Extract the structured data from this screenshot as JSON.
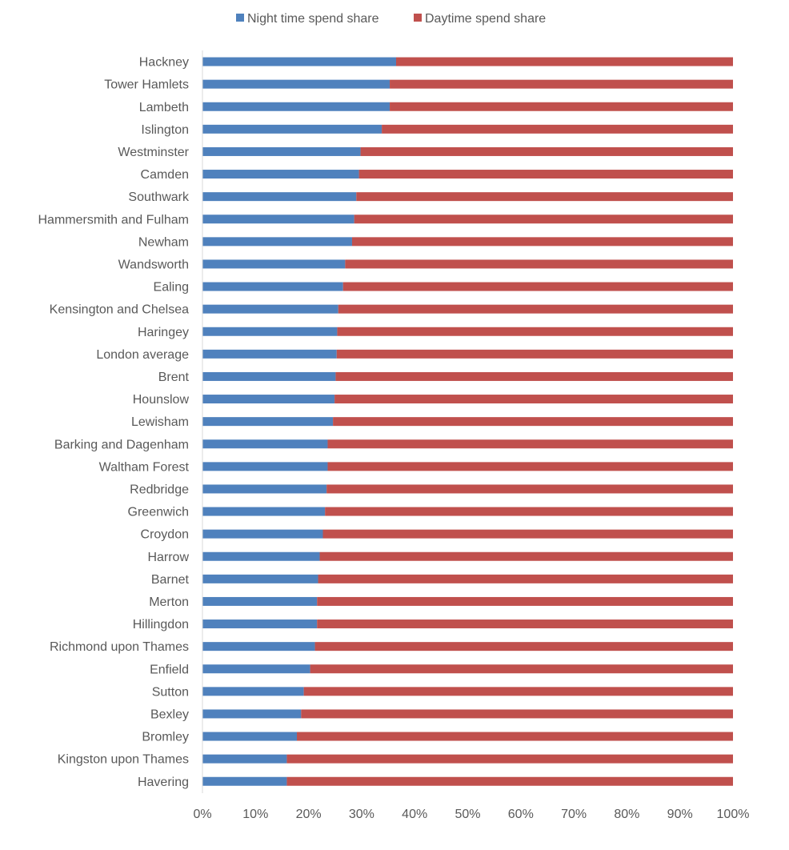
{
  "chart_data": {
    "type": "bar",
    "orientation": "horizontal",
    "stacked": true,
    "normalized_percent": true,
    "categories": [
      "Hackney",
      "Tower Hamlets",
      "Lambeth",
      "Islington",
      "Westminster",
      "Camden",
      "Southwark",
      "Hammersmith and Fulham",
      "Newham",
      "Wandsworth",
      "Ealing",
      "Kensington and Chelsea",
      "Haringey",
      "London average",
      "Brent",
      "Hounslow",
      "Lewisham",
      "Barking and Dagenham",
      "Waltham Forest",
      "Redbridge",
      "Greenwich",
      "Croydon",
      "Harrow",
      "Barnet",
      "Merton",
      "Hillingdon",
      "Richmond upon Thames",
      "Enfield",
      "Sutton",
      "Bexley",
      "Bromley",
      "Kingston upon Thames",
      "Havering"
    ],
    "series": [
      {
        "name": "Night time spend share",
        "color": "#4f81bd",
        "values": [
          36.5,
          35.3,
          35.3,
          33.8,
          29.8,
          29.5,
          29.0,
          28.6,
          28.2,
          26.9,
          26.5,
          25.6,
          25.4,
          25.3,
          25.1,
          24.9,
          24.6,
          23.6,
          23.6,
          23.4,
          23.1,
          22.7,
          22.1,
          21.8,
          21.6,
          21.6,
          21.2,
          20.3,
          19.1,
          18.6,
          17.8,
          15.9,
          15.9
        ]
      },
      {
        "name": "Daytime spend share",
        "color": "#c0504d",
        "values": [
          63.5,
          64.7,
          64.7,
          66.2,
          70.2,
          70.5,
          71.0,
          71.4,
          71.8,
          73.1,
          73.5,
          74.4,
          74.6,
          74.7,
          74.9,
          75.1,
          75.4,
          76.4,
          76.4,
          76.6,
          76.9,
          77.3,
          77.9,
          78.2,
          78.4,
          78.4,
          78.8,
          79.7,
          80.9,
          81.4,
          82.2,
          84.1,
          84.1
        ]
      }
    ],
    "x_ticks": [
      "0%",
      "10%",
      "20%",
      "30%",
      "40%",
      "50%",
      "60%",
      "70%",
      "80%",
      "90%",
      "100%"
    ],
    "xlim": [
      0,
      100
    ],
    "legend_position": "top-center",
    "title": "",
    "xlabel": "",
    "ylabel": ""
  }
}
